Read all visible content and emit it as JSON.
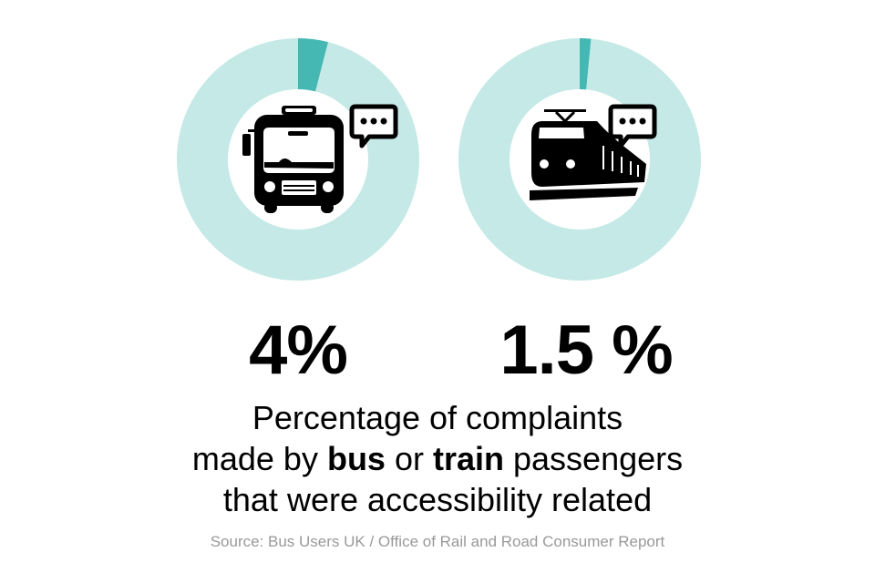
{
  "chart_data": [
    {
      "type": "pie",
      "variant": "donut",
      "categories": [
        "accessibility related",
        "other"
      ],
      "values": [
        4,
        96
      ],
      "icon": "bus-with-speech-bubble-icon",
      "label": "4%"
    },
    {
      "type": "pie",
      "variant": "donut",
      "categories": [
        "accessibility related",
        "other"
      ],
      "values": [
        1.5,
        98.5
      ],
      "icon": "train-with-speech-bubble-icon",
      "label": "1.5 %"
    }
  ],
  "colors": {
    "highlight": "#45b8b3",
    "remainder": "#c4e9e6",
    "source_text": "#999999"
  },
  "caption": {
    "line1": "Percentage of complaints",
    "line2_a": "made by ",
    "line2_bus": "bus",
    "line2_b": " or ",
    "line2_train": "train",
    "line2_c": " passengers",
    "line3": "that were accessibility related"
  },
  "source": "Source: Bus Users UK / Office of Rail and Road Consumer Report"
}
